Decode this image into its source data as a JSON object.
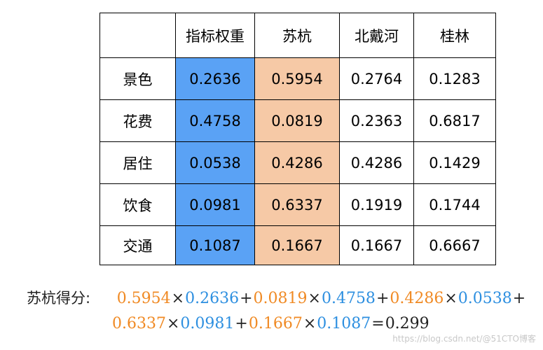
{
  "table": {
    "headers": [
      "",
      "指标权重",
      "苏杭",
      "北戴河",
      "桂林"
    ],
    "rows": [
      {
        "label": "景色",
        "weight": "0.2636",
        "suhang": "0.5954",
        "beidaihe": "0.2764",
        "guilin": "0.1283"
      },
      {
        "label": "花费",
        "weight": "0.4758",
        "suhang": "0.0819",
        "beidaihe": "0.2363",
        "guilin": "0.6817"
      },
      {
        "label": "居住",
        "weight": "0.0538",
        "suhang": "0.4286",
        "beidaihe": "0.4286",
        "guilin": "0.1429"
      },
      {
        "label": "饮食",
        "weight": "0.0981",
        "suhang": "0.6337",
        "beidaihe": "0.1919",
        "guilin": "0.1744"
      },
      {
        "label": "交通",
        "weight": "0.1087",
        "suhang": "0.1667",
        "beidaihe": "0.1667",
        "guilin": "0.6667"
      }
    ],
    "colors": {
      "weight_column": "#5aa2f5",
      "suhang_column": "#f6c9a6"
    }
  },
  "formula": {
    "label": "苏杭得分:",
    "times": "×",
    "plus": "+",
    "equals": "=",
    "line1": {
      "a1": "0.5954",
      "b1": "0.2636",
      "a2": "0.0819",
      "b2": "0.4758",
      "a3": "0.4286",
      "b3": "0.0538"
    },
    "line2": {
      "a4": "0.6337",
      "b4": "0.0981",
      "a5": "0.1667",
      "b5": "0.1087",
      "result": "0.299"
    },
    "colors": {
      "suhang_value": "#f08a24",
      "weight_value": "#2d8fe0"
    }
  },
  "watermark": "https://blog.csdn.net/@51CTO博客"
}
